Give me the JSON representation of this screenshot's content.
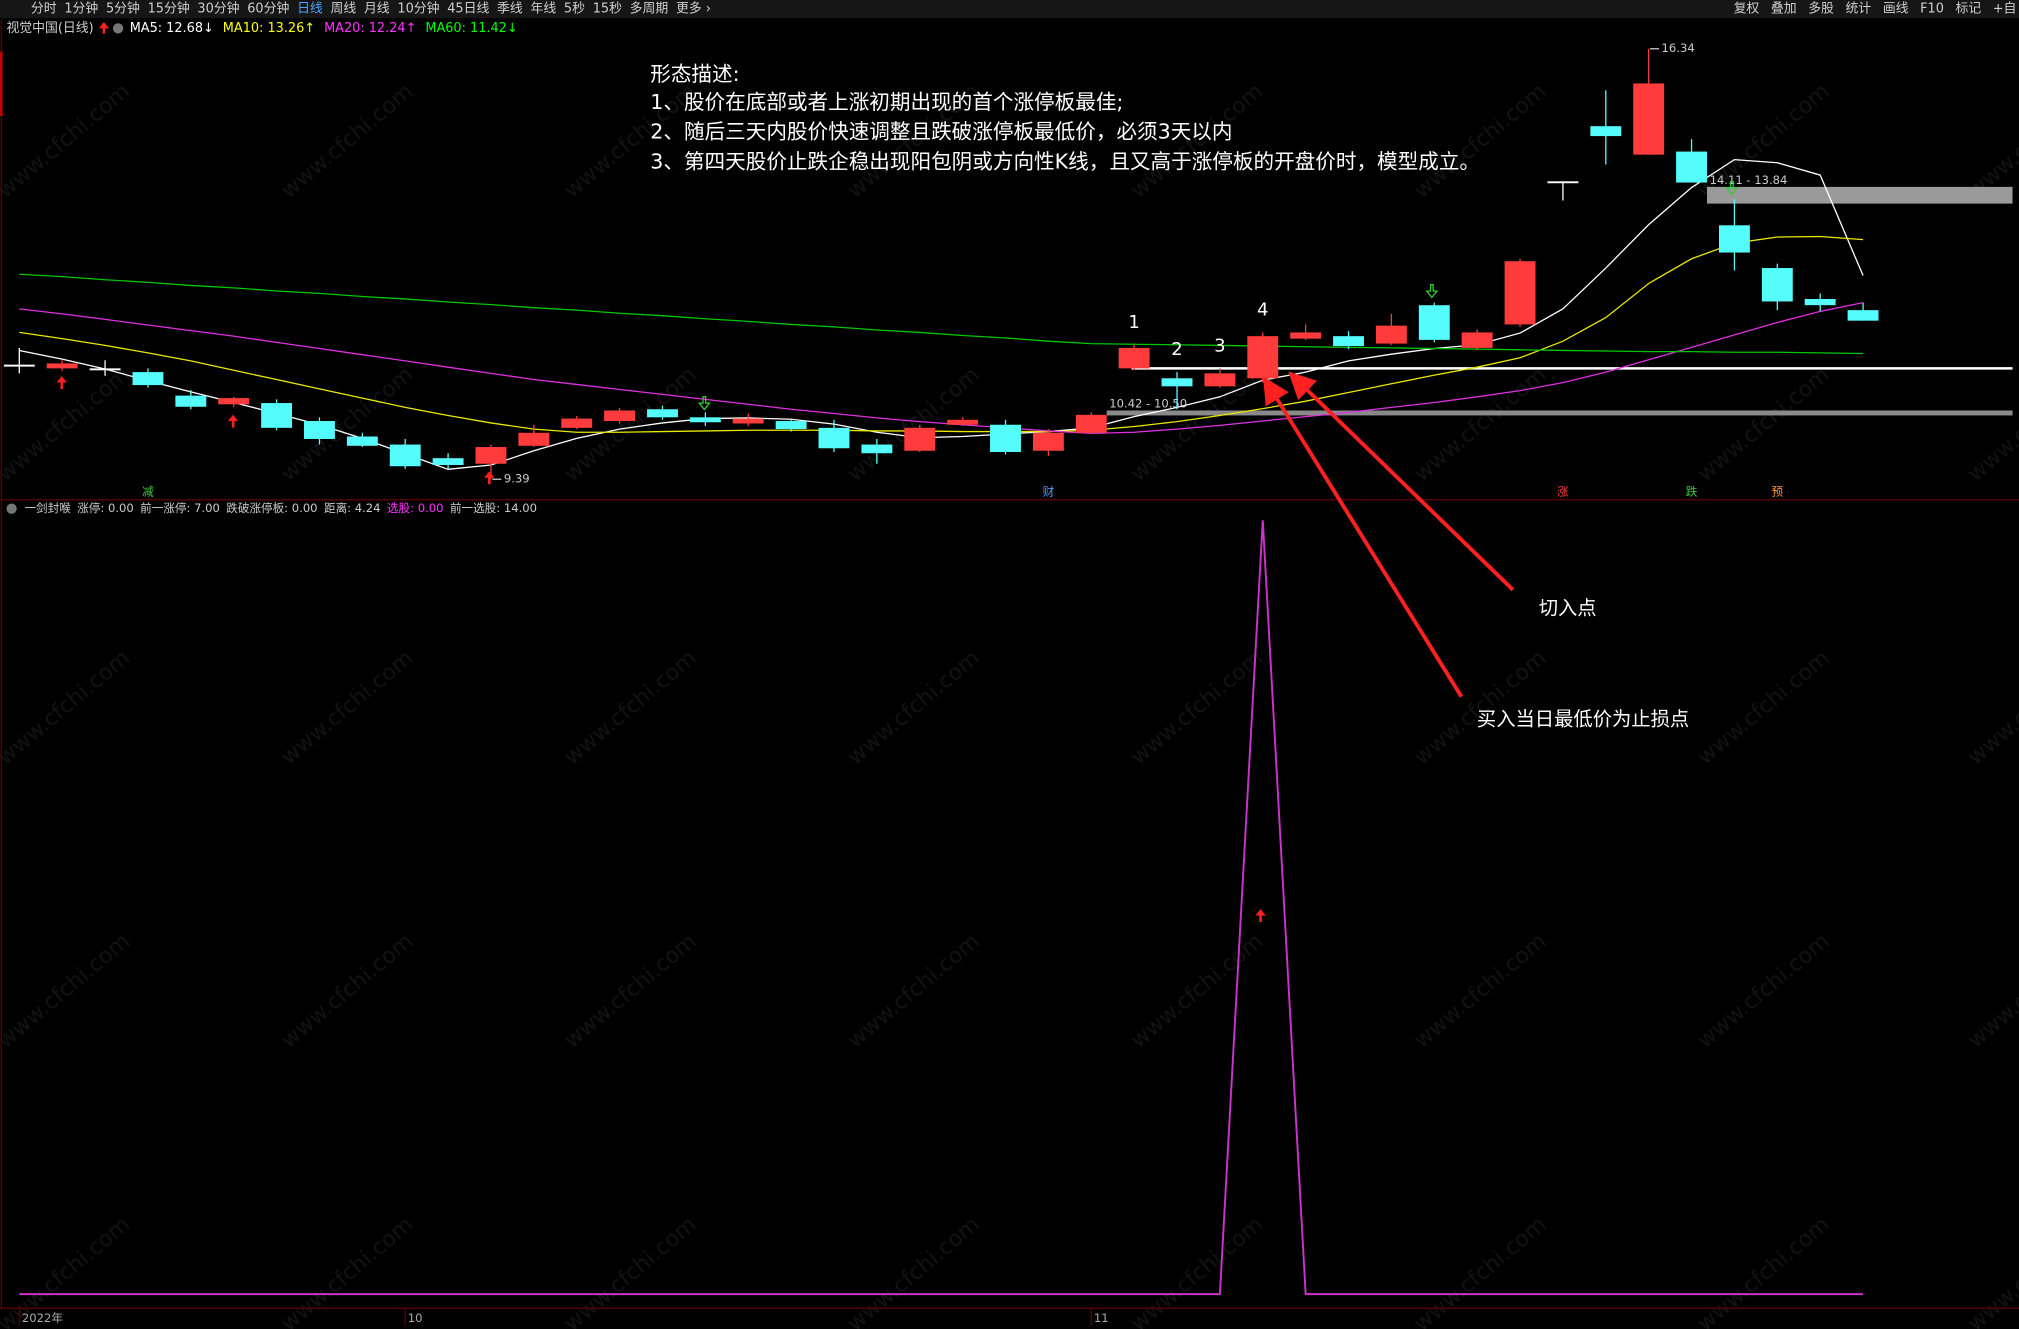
{
  "toolbar": {
    "periods": [
      "分时",
      "1分钟",
      "5分钟",
      "15分钟",
      "30分钟",
      "60分钟",
      "日线",
      "周线",
      "月线",
      "10分钟",
      "45日线",
      "季线",
      "年线",
      "5秒",
      "15秒",
      "多周期",
      "更多 ›"
    ],
    "active": 6,
    "tools": [
      "复权",
      "叠加",
      "多股",
      "统计",
      "画线",
      "F10",
      "标记",
      "+自"
    ]
  },
  "header": {
    "stock": "视觉中国(日线)",
    "ma_labels": [
      {
        "text": "MA5: 12.68↓",
        "color": "#ffffff"
      },
      {
        "text": "MA10: 13.26↑",
        "color": "#ffff00"
      },
      {
        "text": "MA20: 12.24↑",
        "color": "#ff33ff"
      },
      {
        "text": "MA60: 11.42↓",
        "color": "#00ff00"
      }
    ],
    "indicator_parts": [
      {
        "text": "一剑封喉",
        "color": "#cccccc"
      },
      {
        "text": "涨停: 0.00",
        "color": "#cccccc"
      },
      {
        "text": "前一涨停: 7.00",
        "color": "#cccccc"
      },
      {
        "text": "跌破涨停板: 0.00",
        "color": "#cccccc"
      },
      {
        "text": "距离: 4.24",
        "color": "#cccccc"
      },
      {
        "text": "选股: 0.00",
        "color": "#ff33ff"
      },
      {
        "text": "前一选股: 14.00",
        "color": "#cccccc"
      }
    ]
  },
  "annotations": {
    "description": [
      "形态描述:",
      "1、股价在底部或者上涨初期出现的首个涨停板最佳;",
      "2、随后三天内股价快速调整且跌破涨停板最低价，必须3天以内",
      "3、第四天股价止跌企稳出现阳包阴或方向性K线，且又高于涨停板的开盘价时，模型成立。"
    ],
    "entry": "切入点",
    "stop": "买入当日最低价为止损点",
    "watermark": "www.cfchi.com"
  },
  "chart_data": [
    {
      "type": "candlestick",
      "categories": [
        "2022年",
        null,
        null,
        null,
        null,
        null,
        null,
        null,
        null,
        "10",
        null,
        null,
        null,
        null,
        null,
        null,
        null,
        null,
        null,
        null,
        null,
        null,
        null,
        null,
        null,
        "11",
        null,
        null,
        null,
        null,
        null,
        null,
        null,
        null,
        null,
        null,
        null,
        null,
        null,
        null,
        null,
        null,
        null,
        null
      ],
      "open": [
        11.24,
        11.18,
        11.18,
        11.12,
        10.74,
        10.6,
        10.62,
        10.33,
        10.08,
        9.95,
        9.73,
        9.64,
        9.93,
        10.22,
        10.33,
        10.52,
        10.39,
        10.29,
        10.33,
        10.22,
        9.95,
        9.85,
        10.27,
        10.27,
        9.85,
        10.14,
        11.18,
        11.02,
        10.89,
        11.02,
        11.66,
        11.7,
        11.58,
        12.2,
        11.51,
        11.89,
        14.2,
        15.09,
        14.63,
        14.68,
        13.49,
        12.8,
        12.3,
        12.12
      ],
      "high": [
        11.51,
        11.31,
        11.31,
        11.18,
        10.83,
        10.72,
        10.68,
        10.39,
        10.14,
        10.04,
        9.81,
        9.95,
        10.27,
        10.41,
        10.54,
        10.58,
        10.47,
        10.45,
        10.37,
        10.35,
        10.04,
        10.27,
        10.39,
        10.35,
        10.2,
        10.47,
        11.56,
        11.12,
        11.18,
        11.76,
        11.89,
        11.78,
        12.06,
        12.24,
        11.81,
        12.95,
        14.2,
        15.67,
        16.34,
        14.88,
        13.91,
        12.87,
        12.39,
        12.24
      ],
      "low": [
        11.1,
        11.14,
        11.06,
        10.87,
        10.52,
        10.56,
        10.18,
        9.95,
        9.91,
        9.56,
        9.55,
        9.39,
        9.91,
        10.2,
        10.29,
        10.35,
        10.25,
        10.25,
        10.16,
        9.83,
        9.64,
        9.83,
        10.25,
        9.79,
        9.77,
        10.12,
        11.16,
        10.52,
        10.87,
        10.95,
        11.64,
        11.49,
        11.56,
        11.6,
        11.47,
        11.85,
        13.89,
        14.47,
        14.63,
        14.18,
        12.76,
        12.12,
        12.1,
        11.95
      ],
      "close": [
        11.24,
        11.26,
        11.18,
        10.91,
        10.56,
        10.7,
        10.22,
        10.04,
        9.93,
        9.6,
        9.62,
        9.91,
        10.14,
        10.37,
        10.5,
        10.39,
        10.31,
        10.37,
        10.2,
        9.89,
        9.81,
        10.22,
        10.35,
        9.83,
        10.14,
        10.43,
        11.51,
        10.89,
        11.1,
        11.7,
        11.76,
        11.54,
        11.87,
        11.64,
        11.76,
        12.91,
        14.2,
        14.93,
        15.78,
        14.18,
        13.05,
        12.26,
        12.2,
        11.95
      ],
      "up_color": "#ff3b3b",
      "down_color": "#54fcfc",
      "flat_color": "#ffffff",
      "ylim": [
        9.06,
        16.71
      ],
      "series": [
        {
          "name": "MA5",
          "color": "#ffffff",
          "values": [
            11.47,
            11.33,
            11.17,
            10.98,
            10.8,
            10.63,
            10.45,
            10.27,
            10.05,
            9.8,
            9.55,
            9.62,
            9.85,
            10.05,
            10.2,
            10.3,
            10.37,
            10.38,
            10.36,
            10.28,
            10.15,
            10.06,
            10.08,
            10.12,
            10.16,
            10.22,
            10.4,
            10.55,
            10.72,
            10.99,
            11.12,
            11.3,
            11.41,
            11.5,
            11.56,
            11.75,
            12.14,
            12.8,
            13.5,
            14.1,
            14.55,
            14.5,
            14.3,
            12.68
          ]
        },
        {
          "name": "MA10",
          "color": "#e8e800",
          "values": [
            11.76,
            11.66,
            11.55,
            11.43,
            11.3,
            11.15,
            11.0,
            10.85,
            10.7,
            10.55,
            10.42,
            10.3,
            10.2,
            10.15,
            10.15,
            10.16,
            10.17,
            10.18,
            10.18,
            10.18,
            10.17,
            10.17,
            10.16,
            10.16,
            10.16,
            10.18,
            10.24,
            10.32,
            10.42,
            10.53,
            10.65,
            10.79,
            10.93,
            11.07,
            11.2,
            11.35,
            11.62,
            12.0,
            12.55,
            12.95,
            13.2,
            13.3,
            13.31,
            13.26
          ]
        },
        {
          "name": "MA20",
          "color": "#e030e0",
          "values": [
            12.14,
            12.06,
            11.97,
            11.88,
            11.79,
            11.7,
            11.6,
            11.5,
            11.4,
            11.3,
            11.2,
            11.1,
            11.0,
            10.92,
            10.84,
            10.76,
            10.68,
            10.6,
            10.52,
            10.45,
            10.38,
            10.32,
            10.27,
            10.22,
            10.17,
            10.13,
            10.15,
            10.2,
            10.26,
            10.33,
            10.4,
            10.47,
            10.55,
            10.63,
            10.72,
            10.82,
            10.95,
            11.12,
            11.32,
            11.52,
            11.72,
            11.92,
            12.1,
            12.24
          ]
        },
        {
          "name": "MA60",
          "color": "#00c800",
          "values": [
            12.7,
            12.66,
            12.61,
            12.57,
            12.52,
            12.48,
            12.43,
            12.39,
            12.34,
            12.3,
            12.25,
            12.21,
            12.16,
            12.12,
            12.07,
            12.03,
            11.98,
            11.94,
            11.89,
            11.85,
            11.8,
            11.76,
            11.71,
            11.67,
            11.62,
            11.58,
            11.57,
            11.56,
            11.55,
            11.54,
            11.53,
            11.52,
            11.51,
            11.5,
            11.49,
            11.48,
            11.47,
            11.46,
            11.45,
            11.45,
            11.44,
            11.44,
            11.43,
            11.42
          ]
        }
      ],
      "price_labels": [
        {
          "index": 38,
          "value": 16.34
        },
        {
          "index": 11,
          "value": 9.39
        }
      ],
      "bands": [
        {
          "label": "10.42 - 10.50",
          "range": [
            10.42,
            10.5
          ],
          "from": 25,
          "color": "#8a8a8a"
        },
        {
          "label": "14.11 - 13.84",
          "range": [
            14.11,
            13.84
          ],
          "from": 39,
          "color": "#9a9a9a"
        }
      ],
      "levels": [
        {
          "value": 11.18,
          "from": 26,
          "color": "#ffffff"
        }
      ],
      "step_labels": [
        {
          "text": "1",
          "index": 26
        },
        {
          "text": "2",
          "index": 27
        },
        {
          "text": "3",
          "index": 28
        },
        {
          "text": "4",
          "index": 29
        }
      ],
      "events": [
        {
          "text": "减",
          "index": 3,
          "color": "#33cc33"
        },
        {
          "text": "财",
          "index": 24,
          "color": "#5599ff"
        },
        {
          "text": "涨",
          "index": 36,
          "color": "#ff3b3b"
        },
        {
          "text": "跌",
          "index": 39,
          "color": "#33cc33"
        },
        {
          "text": "预",
          "index": 41,
          "color": "#ff9933"
        }
      ]
    },
    {
      "type": "line",
      "color": "#cc33cc",
      "values": [
        0,
        0,
        0,
        0,
        0,
        0,
        0,
        0,
        0,
        0,
        0,
        0,
        0,
        0,
        0,
        0,
        0,
        0,
        0,
        0,
        0,
        0,
        0,
        0,
        0,
        0,
        0,
        0,
        0,
        1,
        0,
        0,
        0,
        0,
        0,
        0,
        0,
        0,
        0,
        0,
        0,
        0,
        0,
        0
      ],
      "ylim": [
        0,
        1
      ]
    }
  ]
}
